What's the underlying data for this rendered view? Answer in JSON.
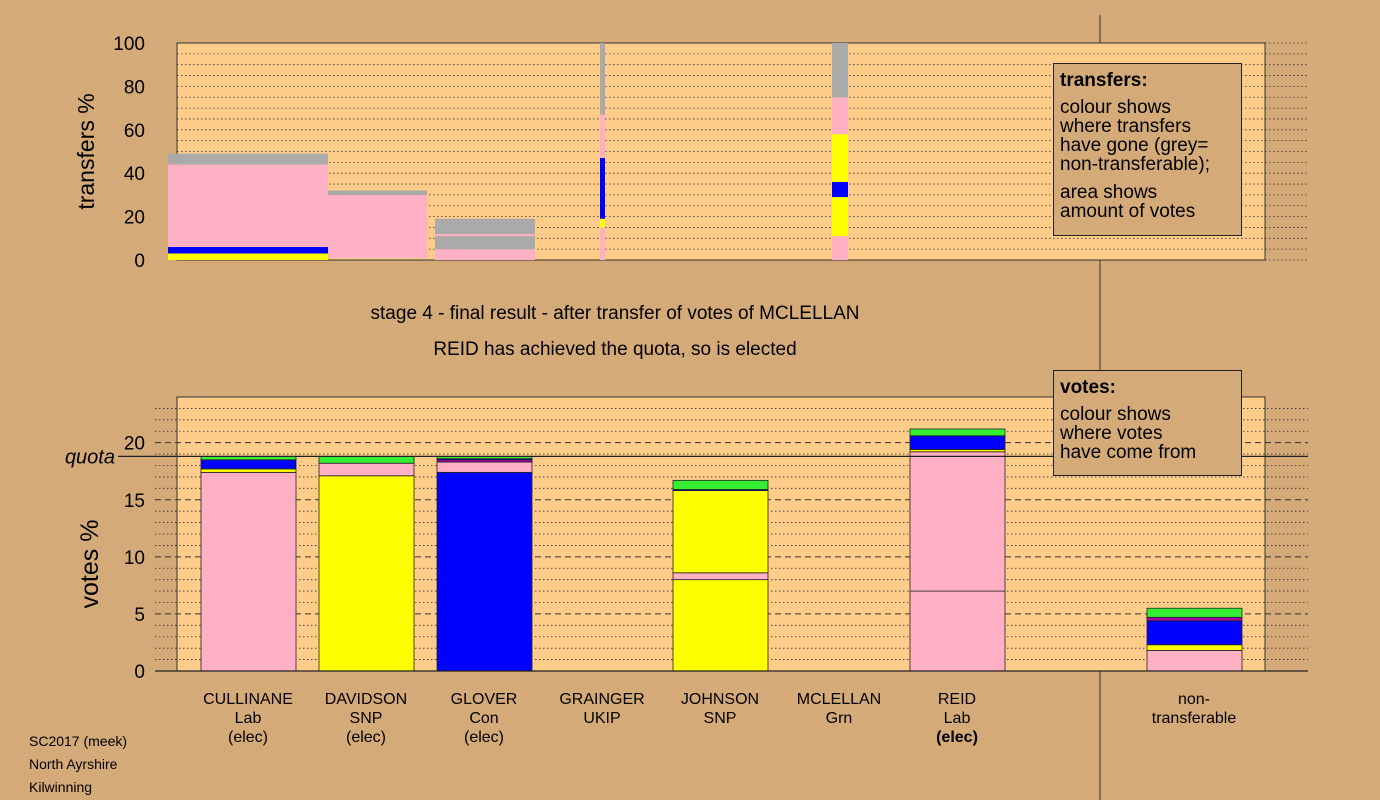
{
  "titles": {
    "stage": "stage 4 - final result - after transfer of votes of MCLELLAN",
    "status": "REID has achieved the quota, so is elected"
  },
  "footer": [
    "SC2017 (meek)",
    "North Ayrshire",
    "Kilwinning"
  ],
  "colors": {
    "background": "#d4aa78",
    "plot_bg": "#ffcc8a",
    "lab": "#ffb0c4",
    "snp": "#ffff00",
    "con": "#0000ff",
    "grn": "#33ee33",
    "ukip": "#aa00aa",
    "nontransferable": "#aaaaaa"
  },
  "legends": {
    "transfers": {
      "title": "transfers:",
      "lines": [
        "colour shows",
        "where transfers",
        "have gone (grey=",
        "non-transferable);"
      ],
      "lines2": [
        "area shows",
        "amount of votes"
      ]
    },
    "votes": {
      "title": "votes:",
      "lines": [
        "colour shows",
        "where votes",
        "have come from"
      ]
    }
  },
  "candidates": [
    {
      "name": "CULLINANE",
      "party": "Lab",
      "status": "(elec)",
      "status_bold": false
    },
    {
      "name": "DAVIDSON",
      "party": "SNP",
      "status": "(elec)",
      "status_bold": false
    },
    {
      "name": "GLOVER",
      "party": "Con",
      "status": "(elec)",
      "status_bold": false
    },
    {
      "name": "GRAINGER",
      "party": "UKIP",
      "status": "",
      "status_bold": false
    },
    {
      "name": "JOHNSON",
      "party": "SNP",
      "status": "",
      "status_bold": false
    },
    {
      "name": "MCLELLAN",
      "party": "Grn",
      "status": "",
      "status_bold": false
    },
    {
      "name": "REID",
      "party": "Lab",
      "status": "(elec)",
      "status_bold": true
    }
  ],
  "nontransferable_label": [
    "non-",
    "transferable"
  ],
  "chart_data": [
    {
      "type": "bar",
      "name": "transfers",
      "ylabel": "transfers %",
      "ylim": [
        0,
        100
      ],
      "yticks": [
        0,
        20,
        40,
        60,
        80,
        100
      ],
      "columns": [
        {
          "candidate": "CULLINANE",
          "width_units": 1.0,
          "segments": [
            {
              "party": "snp",
              "from": 0,
              "to": 3
            },
            {
              "party": "con",
              "from": 3,
              "to": 6
            },
            {
              "party": "lab",
              "from": 6,
              "to": 44
            },
            {
              "party": "nontransferable",
              "from": 44,
              "to": 49
            }
          ]
        },
        {
          "candidate": "DAVIDSON",
          "width_units": 0.62,
          "segments": [
            {
              "party": "lab",
              "from": 1,
              "to": 30
            },
            {
              "party": "nontransferable",
              "from": 30,
              "to": 32
            }
          ]
        },
        {
          "candidate": "GLOVER",
          "width_units": 0.62,
          "segments": [
            {
              "party": "lab",
              "from": 0,
              "to": 5
            },
            {
              "party": "nontransferable",
              "from": 5,
              "to": 11
            },
            {
              "party": "lab",
              "from": 11,
              "to": 12
            },
            {
              "party": "nontransferable",
              "from": 12,
              "to": 19
            }
          ]
        },
        {
          "candidate": "GRAINGER",
          "width_units": 0.03,
          "segments": [
            {
              "party": "lab",
              "from": 0,
              "to": 15
            },
            {
              "party": "snp",
              "from": 15,
              "to": 19
            },
            {
              "party": "con",
              "from": 19,
              "to": 47
            },
            {
              "party": "lab",
              "from": 47,
              "to": 67
            },
            {
              "party": "nontransferable",
              "from": 67,
              "to": 100
            }
          ]
        },
        {
          "candidate": "MCLELLAN",
          "width_units": 0.1,
          "segments": [
            {
              "party": "lab",
              "from": 0,
              "to": 11
            },
            {
              "party": "snp",
              "from": 11,
              "to": 29
            },
            {
              "party": "con",
              "from": 29,
              "to": 36
            },
            {
              "party": "snp",
              "from": 36,
              "to": 58
            },
            {
              "party": "lab",
              "from": 58,
              "to": 75
            },
            {
              "party": "nontransferable",
              "from": 75,
              "to": 100
            }
          ]
        }
      ]
    },
    {
      "type": "bar",
      "name": "votes",
      "ylabel": "votes %",
      "ylim": [
        0,
        24
      ],
      "yticks": [
        0,
        5,
        10,
        15,
        20
      ],
      "quota": 18.8,
      "quota_label": "quota",
      "stacked": true,
      "bars": [
        {
          "candidate": "CULLINANE",
          "segments": [
            {
              "party": "lab",
              "value": 17.4
            },
            {
              "party": "snp",
              "value": 0.3
            },
            {
              "party": "con",
              "value": 0.8
            },
            {
              "party": "grn",
              "value": 0.3
            }
          ]
        },
        {
          "candidate": "DAVIDSON",
          "segments": [
            {
              "party": "snp",
              "value": 17.1
            },
            {
              "party": "lab",
              "value": 1.1
            },
            {
              "party": "grn",
              "value": 0.6
            }
          ]
        },
        {
          "candidate": "GLOVER",
          "segments": [
            {
              "party": "con",
              "value": 17.4
            },
            {
              "party": "lab",
              "value": 0.9
            },
            {
              "party": "ukip",
              "value": 0.2
            },
            {
              "party": "con",
              "value": 0.1
            },
            {
              "party": "grn",
              "value": 0.2
            }
          ]
        },
        {
          "candidate": "GRAINGER",
          "segments": []
        },
        {
          "candidate": "JOHNSON",
          "segments": [
            {
              "party": "snp",
              "value": 8.0
            },
            {
              "party": "lab",
              "value": 0.6
            },
            {
              "party": "snp",
              "value": 7.2
            },
            {
              "party": "con",
              "value": 0.1
            },
            {
              "party": "grn",
              "value": 0.8
            }
          ]
        },
        {
          "candidate": "MCLELLAN",
          "segments": []
        },
        {
          "candidate": "REID",
          "segments": [
            {
              "party": "lab",
              "value": 7.0
            },
            {
              "party": "lab",
              "value": 12.2
            },
            {
              "party": "snp",
              "value": 0.2
            },
            {
              "party": "con",
              "value": 1.2
            },
            {
              "party": "grn",
              "value": 0.6
            }
          ]
        }
      ],
      "nontransferable": {
        "segments": [
          {
            "party": "lab",
            "value": 1.8
          },
          {
            "party": "snp",
            "value": 0.5
          },
          {
            "party": "con",
            "value": 2.1
          },
          {
            "party": "ukip",
            "value": 0.3
          },
          {
            "party": "grn",
            "value": 0.8
          }
        ]
      }
    }
  ]
}
